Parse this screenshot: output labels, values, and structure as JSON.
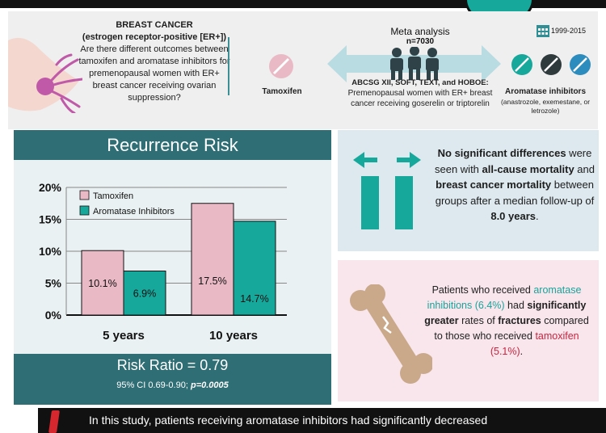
{
  "header": {
    "question_title_1": "BREAST CANCER",
    "question_title_2": "(estrogen receptor-positive [ER+])",
    "question_body": "Are there different outcomes between tamoxifen and aromatase inhibitors for premenopausal women with ER+ breast cancer receiving ovarian suppression?",
    "tamoxifen_label": "Tamoxifen",
    "meta_title": "Meta analysis",
    "meta_n": "n=7030",
    "years": "1999-2015",
    "trials_title": "ABCSG XII, SOFT, TEXT, and HOBOE:",
    "trials_body": "Premenopausal women with ER+ breast cancer receiving goserelin or triptorelin",
    "ai_label": "Aromatase inhibitors",
    "ai_drugs": "(anastrozole, exemestane, or letrozole)",
    "icons": [
      "breast-icon",
      "pill-icon",
      "double-arrow-icon",
      "people-icon",
      "calendar-icon"
    ]
  },
  "recurrence": {
    "title": "Recurrence Risk",
    "risk_ratio": "Risk Ratio = 0.79",
    "ci_prefix": "95% CI 0.69-0.90; ",
    "p_value": "p=0.0005"
  },
  "no_diff": {
    "p1": "No significant differences",
    "p2": " were seen with ",
    "p3": "all-cause mortality",
    "p4": " and ",
    "p5": "breast cancer mortality",
    "p6": " between groups after a median follow-up of ",
    "p7": "8.0 years",
    "p8": "."
  },
  "fractures": {
    "p1": "Patients who received ",
    "p2": "aromatase inhibitions (6.4%)",
    "p3": " had ",
    "p4": "significantly greater",
    "p5": " rates of ",
    "p6": "fractures",
    "p7": " compared to those who received ",
    "p8": "tamoxifen (5.1%)",
    "p9": "."
  },
  "bottom": {
    "text": "In this study, patients receiving aromatase inhibitors had significantly decreased"
  },
  "colors": {
    "tamoxifen": "#eab9c6",
    "aromatase": "#17a89c",
    "dark_teal": "#2f6e74",
    "bone": "#c9a98a"
  },
  "chart_data": {
    "type": "bar",
    "categories": [
      "5 years",
      "10 years"
    ],
    "series": [
      {
        "name": "Tamoxifen",
        "values": [
          10.1,
          17.5
        ],
        "labels": [
          "10.1%",
          "17.5%"
        ]
      },
      {
        "name": "Aromatase Inhibitors",
        "values": [
          6.9,
          14.7
        ],
        "labels": [
          "6.9%",
          "14.7%"
        ]
      }
    ],
    "yticks": [
      "0%",
      "5%",
      "10%",
      "15%",
      "20%"
    ],
    "ylim": [
      0,
      20
    ],
    "grid": true,
    "legend": "top-left"
  }
}
